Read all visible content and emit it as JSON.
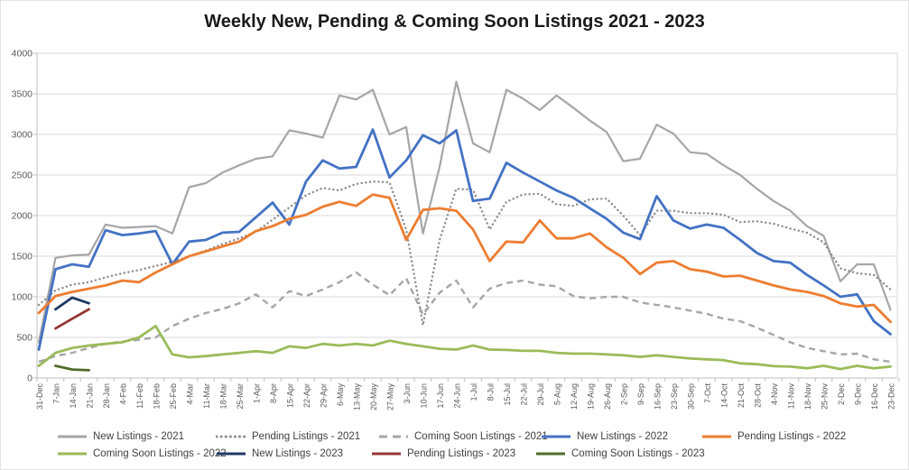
{
  "chart_data": {
    "type": "line",
    "title": "Weekly New, Pending & Coming Soon Listings 2021 - 2023",
    "grid": true,
    "legend_position": "bottom",
    "y_axis": {
      "min": 0,
      "max": 4000,
      "step": 500,
      "tick_labels": [
        "0",
        "500",
        "1000",
        "1500",
        "2000",
        "2500",
        "3000",
        "3500",
        "4000"
      ]
    },
    "x_labels": [
      "31-Dec",
      "7-Jan",
      "14-Jan",
      "21-Jan",
      "28-Jan",
      "4-Feb",
      "11-Feb",
      "18-Feb",
      "25-Feb",
      "4-Mar",
      "11-Mar",
      "18-Mar",
      "25-Mar",
      "1-Apr",
      "8-Apr",
      "15-Apr",
      "22-Apr",
      "29-Apr",
      "6-May",
      "13-May",
      "20-May",
      "27-May",
      "3-Jun",
      "10-Jun",
      "17-Jun",
      "24-Jun",
      "1-Jul",
      "8-Jul",
      "15-Jul",
      "22-Jul",
      "29-Jul",
      "5-Aug",
      "12-Aug",
      "19-Aug",
      "26-Aug",
      "2-Sep",
      "9-Sep",
      "16-Sep",
      "23-Sep",
      "30-Sep",
      "7-Oct",
      "14-Oct",
      "21-Oct",
      "28-Oct",
      "4-Nov",
      "11-Nov",
      "18-Nov",
      "25-Nov",
      "2-Dec",
      "9-Dec",
      "16-Dec",
      "23-Dec"
    ],
    "series": [
      {
        "name": "New Listings - 2021",
        "color": "#a6a6a6",
        "style": "solid",
        "width": 2.2,
        "values": [
          440,
          1480,
          1510,
          1520,
          1890,
          1850,
          1860,
          1870,
          1780,
          2350,
          2400,
          2530,
          2620,
          2700,
          2730,
          3050,
          3010,
          2960,
          3480,
          3430,
          3550,
          3000,
          3090,
          1780,
          2600,
          3650,
          2890,
          2780,
          3550,
          3440,
          3300,
          3480,
          3330,
          3170,
          3030,
          2670,
          2700,
          3120,
          3010,
          2780,
          2760,
          2620,
          2500,
          2330,
          2180,
          2060,
          1870,
          1750,
          1190,
          1400,
          1400,
          840
        ]
      },
      {
        "name": "Pending Listings - 2021",
        "color": "#8c8c8c",
        "style": "dotted",
        "width": 2.4,
        "values": [
          900,
          1080,
          1150,
          1180,
          1240,
          1290,
          1330,
          1380,
          1430,
          1500,
          1570,
          1650,
          1720,
          1800,
          1950,
          2100,
          2250,
          2340,
          2310,
          2390,
          2420,
          2410,
          1830,
          650,
          1700,
          2330,
          2320,
          1830,
          2170,
          2260,
          2270,
          2140,
          2120,
          2200,
          2210,
          2000,
          1760,
          2060,
          2060,
          2030,
          2030,
          2010,
          1920,
          1930,
          1900,
          1840,
          1790,
          1670,
          1350,
          1290,
          1270,
          1090
        ]
      },
      {
        "name": "Coming Soon Listings - 2021",
        "color": "#a6a6a6",
        "style": "dashed",
        "width": 2.4,
        "values": [
          200,
          270,
          310,
          370,
          420,
          450,
          470,
          500,
          640,
          730,
          800,
          850,
          920,
          1030,
          870,
          1070,
          1010,
          1090,
          1180,
          1300,
          1150,
          1020,
          1230,
          780,
          1050,
          1200,
          870,
          1100,
          1170,
          1200,
          1150,
          1130,
          1010,
          980,
          1000,
          1000,
          930,
          900,
          870,
          830,
          790,
          730,
          700,
          620,
          530,
          440,
          370,
          330,
          290,
          300,
          230,
          200
        ]
      },
      {
        "name": "New Listings - 2022",
        "color": "#4472c4",
        "style": "solid",
        "width": 2.8,
        "values": [
          350,
          1340,
          1400,
          1370,
          1820,
          1760,
          1780,
          1810,
          1400,
          1680,
          1700,
          1790,
          1800,
          1980,
          2160,
          1890,
          2420,
          2680,
          2580,
          2600,
          3060,
          2470,
          2680,
          2990,
          2890,
          3050,
          2180,
          2210,
          2650,
          2530,
          2420,
          2310,
          2220,
          2090,
          1960,
          1790,
          1710,
          2240,
          1940,
          1840,
          1890,
          1850,
          1700,
          1540,
          1440,
          1420,
          1270,
          1140,
          1000,
          1030,
          700,
          540
        ]
      },
      {
        "name": "Pending Listings - 2022",
        "color": "#ed7d31",
        "style": "solid",
        "width": 2.8,
        "values": [
          800,
          1010,
          1060,
          1100,
          1140,
          1200,
          1180,
          1300,
          1400,
          1500,
          1560,
          1620,
          1680,
          1810,
          1870,
          1960,
          2010,
          2110,
          2170,
          2120,
          2260,
          2220,
          1700,
          2070,
          2090,
          2060,
          1830,
          1440,
          1680,
          1670,
          1940,
          1720,
          1720,
          1780,
          1610,
          1480,
          1280,
          1420,
          1440,
          1340,
          1310,
          1250,
          1260,
          1200,
          1140,
          1090,
          1060,
          1010,
          920,
          880,
          900,
          690
        ]
      },
      {
        "name": "Coming Soon Listings - 2022",
        "color": "#9bbb59",
        "style": "solid",
        "width": 2.8,
        "values": [
          150,
          310,
          370,
          400,
          420,
          440,
          500,
          640,
          290,
          255,
          270,
          290,
          310,
          330,
          310,
          390,
          370,
          420,
          400,
          420,
          400,
          460,
          420,
          390,
          360,
          350,
          400,
          350,
          345,
          335,
          335,
          310,
          300,
          300,
          290,
          280,
          260,
          280,
          260,
          240,
          230,
          220,
          180,
          170,
          145,
          140,
          120,
          150,
          110,
          150,
          120,
          140
        ]
      },
      {
        "name": "New Listings - 2023",
        "color": "#1f3864",
        "style": "solid",
        "width": 2.8,
        "values": [
          null,
          845,
          990,
          920
        ]
      },
      {
        "name": "Pending Listings - 2023",
        "color": "#943735",
        "style": "solid",
        "width": 2.8,
        "values": [
          null,
          610,
          730,
          845
        ]
      },
      {
        "name": "Coming Soon Listings - 2023",
        "color": "#4f6b2a",
        "style": "solid",
        "width": 2.8,
        "values": [
          null,
          150,
          105,
          95
        ]
      }
    ],
    "legend_rows": [
      [
        0,
        1,
        2,
        3,
        4
      ],
      [
        5,
        6,
        7,
        8
      ]
    ]
  }
}
